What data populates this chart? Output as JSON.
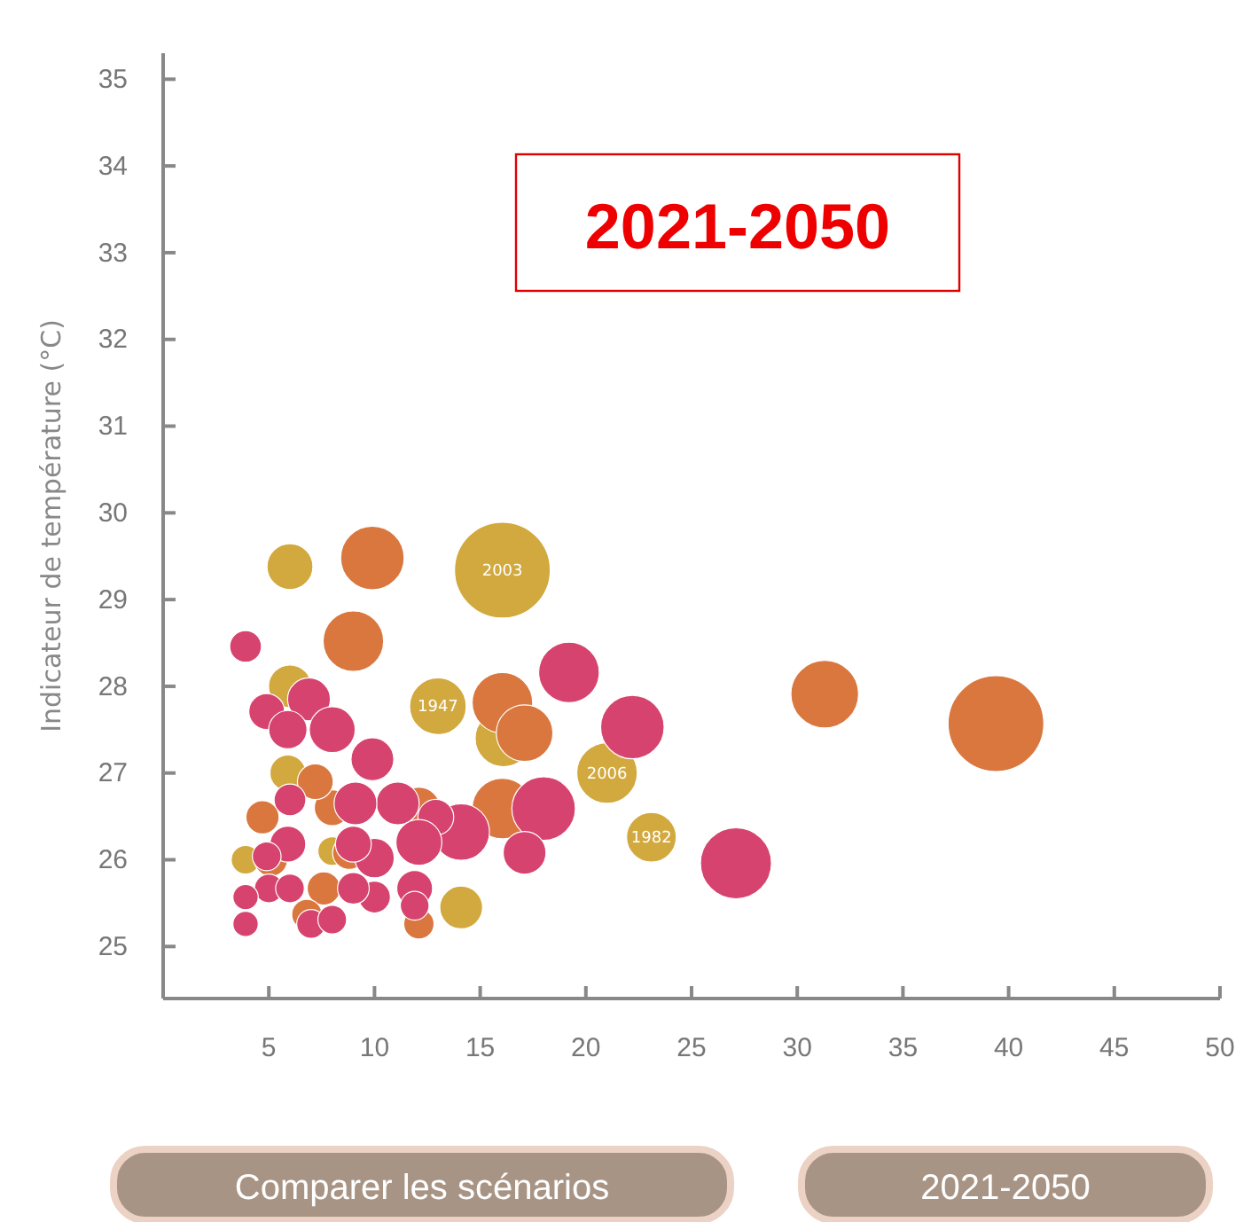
{
  "chart_data": {
    "type": "bubble",
    "title": "2021-2050",
    "ylabel": "Indicateur de température (°C)",
    "xlim": [
      0,
      50
    ],
    "ylim": [
      24.4,
      35.3
    ],
    "xticks": [
      5,
      10,
      15,
      20,
      25,
      30,
      35,
      40,
      45,
      50
    ],
    "yticks": [
      25,
      26,
      27,
      28,
      29,
      30,
      31,
      32,
      33,
      34,
      35
    ],
    "grid": false,
    "series": [
      {
        "color": "#d2a93e",
        "x": [
          6.0,
          16.05,
          13.0,
          16.1,
          21.0,
          23.1,
          14.1,
          6.0,
          5.9,
          3.9,
          8.0
        ],
        "values": [
          29.38,
          29.34,
          27.77,
          27.4,
          27.0,
          26.26,
          25.45,
          28.0,
          27.0,
          26.0,
          26.1
        ],
        "sizes": [
          0.23,
          1,
          0.35,
          0.35,
          0.4,
          0.27,
          0.2,
          0.2,
          0.14,
          0.09,
          0.09
        ]
      },
      {
        "color": "#d9773f",
        "x": [
          9.9,
          9.0,
          16.05,
          17.1,
          31.3,
          39.4,
          16.05,
          12.1,
          4.7,
          5.1,
          8.0,
          7.6,
          12.1,
          6.8,
          8.8,
          7.2
        ],
        "values": [
          29.48,
          28.52,
          27.81,
          27.46,
          27.91,
          27.57,
          26.59,
          26.59,
          26.49,
          26.0,
          26.6,
          25.67,
          25.26,
          25.37,
          26.08,
          26.9
        ],
        "sizes": [
          0.44,
          0.4,
          0.4,
          0.35,
          0.5,
          1,
          0.4,
          0.2,
          0.12,
          0.12,
          0.14,
          0.12,
          0.1,
          0.1,
          0.12,
          0.14
        ]
      },
      {
        "color": "#d6436f",
        "x": [
          3.9,
          4.9,
          6.9,
          5.9,
          8.0,
          9.9,
          19.2,
          22.2,
          18.0,
          17.1,
          27.1,
          14.1,
          12.9,
          11.1,
          9.1,
          6.0,
          5.9,
          12.1,
          10.0,
          9.0,
          4.9,
          5.0,
          3.9,
          3.9,
          6.0,
          7.0,
          8.0,
          10.0,
          11.9,
          11.9,
          9.0
        ],
        "values": [
          28.46,
          27.71,
          27.85,
          27.5,
          27.5,
          27.16,
          28.16,
          27.53,
          26.59,
          26.08,
          25.96,
          26.32,
          26.49,
          26.65,
          26.65,
          26.69,
          26.18,
          26.2,
          26.02,
          26.18,
          26.04,
          25.67,
          25.57,
          25.26,
          25.67,
          25.26,
          25.31,
          25.57,
          25.67,
          25.47,
          25.67
        ],
        "sizes": [
          0.11,
          0.14,
          0.2,
          0.16,
          0.23,
          0.2,
          0.4,
          0.44,
          0.44,
          0.2,
          0.55,
          0.35,
          0.14,
          0.2,
          0.2,
          0.11,
          0.14,
          0.23,
          0.17,
          0.14,
          0.09,
          0.09,
          0.07,
          0.07,
          0.09,
          0.09,
          0.09,
          0.11,
          0.14,
          0.09,
          0.11
        ]
      }
    ],
    "annotations": [
      "Comparer les scénarios",
      "2021-2050",
      {
        "text": "2003",
        "x": 16.05,
        "y": 29.34
      },
      {
        "text": "1947",
        "x": 13.0,
        "y": 27.77
      },
      {
        "text": "2006",
        "x": 21.0,
        "y": 27.0
      },
      {
        "text": "1982",
        "x": 23.1,
        "y": 26.26
      }
    ]
  }
}
